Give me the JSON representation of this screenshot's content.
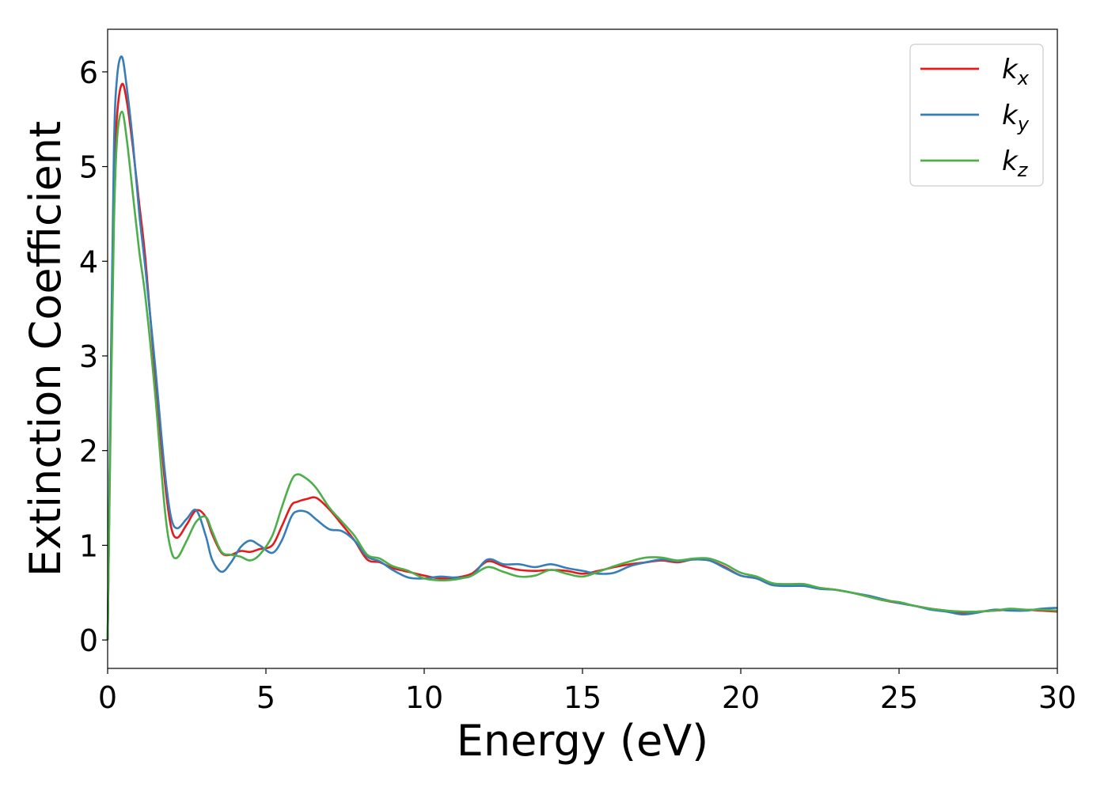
{
  "chart_data": {
    "type": "line",
    "title": "",
    "xlabel": "Energy (eV)",
    "ylabel": "Extinction Coefficient",
    "xlim": [
      0,
      30
    ],
    "ylim": [
      -0.3,
      6.45
    ],
    "xticks": [
      0,
      5,
      10,
      15,
      20,
      25,
      30
    ],
    "yticks": [
      0,
      1,
      2,
      3,
      4,
      5,
      6
    ],
    "xtick_labels": [
      "0",
      "5",
      "10",
      "15",
      "20",
      "25",
      "30"
    ],
    "ytick_labels": [
      "0",
      "1",
      "2",
      "3",
      "4",
      "5",
      "6"
    ],
    "grid": false,
    "legend_position": "top-right",
    "series": [
      {
        "name": "k",
        "subscript": "x",
        "color": "#e41a1c",
        "x": [
          0,
          0.1,
          0.2,
          0.3,
          0.45,
          0.6,
          0.8,
          1.0,
          1.2,
          1.5,
          1.8,
          2.0,
          2.2,
          2.5,
          2.8,
          3.1,
          3.3,
          3.6,
          3.9,
          4.2,
          4.5,
          4.8,
          5.2,
          5.5,
          5.8,
          6.0,
          6.3,
          6.6,
          7.0,
          7.4,
          7.8,
          8.2,
          8.6,
          9.0,
          9.5,
          10.0,
          10.5,
          11.0,
          11.5,
          12.0,
          12.5,
          13.0,
          13.5,
          14.0,
          14.5,
          15.0,
          15.5,
          16.0,
          16.5,
          17.0,
          17.5,
          18.0,
          18.5,
          19.0,
          19.5,
          20.0,
          20.5,
          21.0,
          21.5,
          22.0,
          22.5,
          23.0,
          23.5,
          24.0,
          24.5,
          25.0,
          25.5,
          26.0,
          26.5,
          27.0,
          27.5,
          28.0,
          28.5,
          29.0,
          29.5,
          30.0
        ],
        "y": [
          0,
          2.6,
          4.8,
          5.55,
          5.87,
          5.7,
          5.2,
          4.6,
          4.0,
          2.8,
          1.7,
          1.2,
          1.08,
          1.22,
          1.37,
          1.3,
          1.12,
          0.92,
          0.9,
          0.94,
          0.93,
          0.96,
          1.0,
          1.2,
          1.42,
          1.46,
          1.49,
          1.5,
          1.38,
          1.22,
          1.05,
          0.85,
          0.82,
          0.76,
          0.72,
          0.68,
          0.65,
          0.66,
          0.7,
          0.83,
          0.78,
          0.74,
          0.73,
          0.74,
          0.73,
          0.7,
          0.73,
          0.77,
          0.8,
          0.82,
          0.84,
          0.82,
          0.85,
          0.84,
          0.77,
          0.68,
          0.65,
          0.58,
          0.58,
          0.58,
          0.55,
          0.53,
          0.5,
          0.46,
          0.42,
          0.39,
          0.36,
          0.33,
          0.31,
          0.29,
          0.3,
          0.31,
          0.32,
          0.32,
          0.31,
          0.3
        ]
      },
      {
        "name": "k",
        "subscript": "y",
        "color": "#377eb8",
        "x": [
          0,
          0.1,
          0.2,
          0.3,
          0.45,
          0.6,
          0.8,
          1.0,
          1.2,
          1.5,
          1.8,
          2.0,
          2.2,
          2.5,
          2.8,
          3.1,
          3.3,
          3.6,
          3.9,
          4.2,
          4.5,
          4.8,
          5.2,
          5.5,
          5.8,
          6.0,
          6.3,
          6.6,
          7.0,
          7.4,
          7.8,
          8.2,
          8.6,
          9.0,
          9.5,
          10.0,
          10.5,
          11.0,
          11.5,
          12.0,
          12.5,
          13.0,
          13.5,
          14.0,
          14.5,
          15.0,
          15.5,
          16.0,
          16.5,
          17.0,
          17.5,
          18.0,
          18.5,
          19.0,
          19.5,
          20.0,
          20.5,
          21.0,
          21.5,
          22.0,
          22.5,
          23.0,
          23.5,
          24.0,
          24.5,
          25.0,
          25.5,
          26.0,
          26.5,
          27.0,
          27.5,
          28.0,
          28.5,
          29.0,
          29.5,
          30.0
        ],
        "y": [
          0,
          2.8,
          5.2,
          5.95,
          6.16,
          5.85,
          5.25,
          4.5,
          3.9,
          2.9,
          1.8,
          1.3,
          1.18,
          1.28,
          1.37,
          1.1,
          0.85,
          0.72,
          0.82,
          0.98,
          1.05,
          1.0,
          0.92,
          1.05,
          1.3,
          1.36,
          1.35,
          1.27,
          1.17,
          1.15,
          1.05,
          0.88,
          0.83,
          0.74,
          0.66,
          0.65,
          0.67,
          0.66,
          0.68,
          0.85,
          0.8,
          0.8,
          0.77,
          0.8,
          0.76,
          0.73,
          0.7,
          0.71,
          0.78,
          0.82,
          0.85,
          0.83,
          0.85,
          0.84,
          0.76,
          0.68,
          0.65,
          0.58,
          0.57,
          0.57,
          0.54,
          0.53,
          0.5,
          0.47,
          0.43,
          0.39,
          0.36,
          0.32,
          0.3,
          0.27,
          0.29,
          0.32,
          0.31,
          0.31,
          0.33,
          0.34
        ]
      },
      {
        "name": "k",
        "subscript": "z",
        "color": "#4daf4a",
        "x": [
          0,
          0.1,
          0.2,
          0.3,
          0.45,
          0.6,
          0.8,
          1.0,
          1.2,
          1.5,
          1.8,
          2.0,
          2.2,
          2.5,
          2.8,
          3.1,
          3.3,
          3.6,
          3.9,
          4.2,
          4.5,
          4.8,
          5.2,
          5.5,
          5.8,
          6.0,
          6.3,
          6.6,
          7.0,
          7.4,
          7.8,
          8.2,
          8.6,
          9.0,
          9.5,
          10.0,
          10.5,
          11.0,
          11.5,
          12.0,
          12.5,
          13.0,
          13.5,
          14.0,
          14.5,
          15.0,
          15.5,
          16.0,
          16.5,
          17.0,
          17.5,
          18.0,
          18.5,
          19.0,
          19.5,
          20.0,
          20.5,
          21.0,
          21.5,
          22.0,
          22.5,
          23.0,
          23.5,
          24.0,
          24.5,
          25.0,
          25.5,
          26.0,
          26.5,
          27.0,
          27.5,
          28.0,
          28.5,
          29.0,
          29.5,
          30.0
        ],
        "y": [
          0,
          2.4,
          4.4,
          5.3,
          5.58,
          5.3,
          4.7,
          4.1,
          3.6,
          2.6,
          1.4,
          0.95,
          0.87,
          1.05,
          1.25,
          1.3,
          1.15,
          0.93,
          0.9,
          0.88,
          0.84,
          0.9,
          1.1,
          1.4,
          1.68,
          1.75,
          1.7,
          1.6,
          1.4,
          1.25,
          1.1,
          0.9,
          0.86,
          0.78,
          0.73,
          0.65,
          0.63,
          0.64,
          0.68,
          0.77,
          0.72,
          0.67,
          0.68,
          0.74,
          0.7,
          0.67,
          0.72,
          0.78,
          0.83,
          0.87,
          0.87,
          0.84,
          0.86,
          0.86,
          0.8,
          0.71,
          0.67,
          0.6,
          0.59,
          0.59,
          0.55,
          0.53,
          0.5,
          0.46,
          0.42,
          0.4,
          0.36,
          0.33,
          0.31,
          0.3,
          0.3,
          0.31,
          0.33,
          0.32,
          0.32,
          0.31
        ]
      }
    ]
  }
}
